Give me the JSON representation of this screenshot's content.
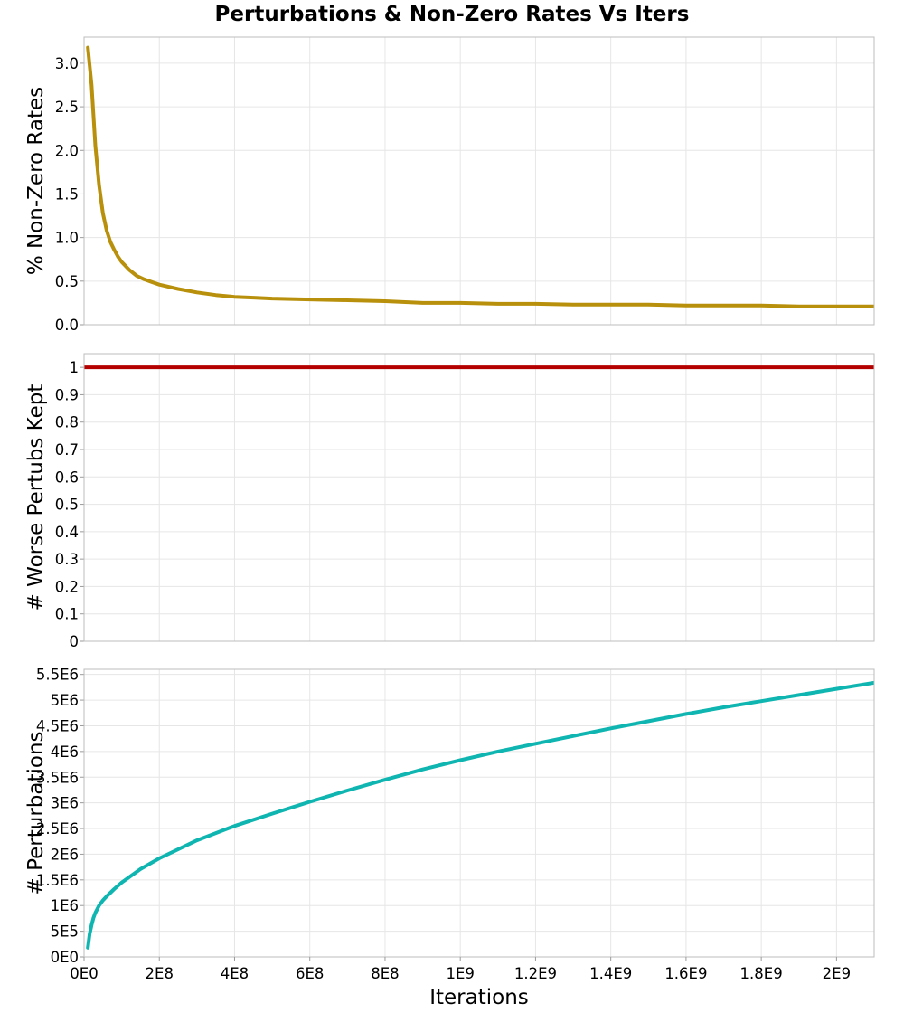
{
  "title": "Perturbations & Non-Zero Rates Vs Iters",
  "x_axis": {
    "label": "Iterations",
    "range": [
      0,
      2100000000
    ],
    "ticks": [
      0,
      200000000,
      400000000,
      600000000,
      800000000,
      1000000000,
      1200000000,
      1400000000,
      1600000000,
      1800000000,
      2000000000
    ],
    "tick_labels": [
      "0E0",
      "2E8",
      "4E8",
      "6E8",
      "8E8",
      "1E9",
      "1.2E9",
      "1.4E9",
      "1.6E9",
      "1.8E9",
      "2E9"
    ]
  },
  "chart_data": [
    {
      "type": "line",
      "ylabel": "% Non-Zero Rates",
      "ylim": [
        0,
        3.3
      ],
      "yticks": [
        0,
        0.5,
        1.0,
        1.5,
        2.0,
        2.5,
        3.0
      ],
      "ytick_labels": [
        "0.0",
        "0.5",
        "1.0",
        "1.5",
        "2.0",
        "2.5",
        "3.0"
      ],
      "grid": true,
      "color": "#b8900b",
      "x": [
        10000000,
        20000000,
        30000000,
        40000000,
        50000000,
        60000000,
        70000000,
        80000000,
        90000000,
        100000000,
        120000000,
        140000000,
        160000000,
        180000000,
        200000000,
        250000000,
        300000000,
        350000000,
        400000000,
        450000000,
        500000000,
        600000000,
        700000000,
        800000000,
        900000000,
        1000000000,
        1100000000,
        1200000000,
        1300000000,
        1400000000,
        1500000000,
        1600000000,
        1700000000,
        1800000000,
        1900000000,
        2000000000,
        2100000000
      ],
      "y": [
        3.18,
        2.75,
        2.05,
        1.6,
        1.28,
        1.08,
        0.95,
        0.86,
        0.78,
        0.72,
        0.63,
        0.56,
        0.52,
        0.49,
        0.46,
        0.41,
        0.37,
        0.34,
        0.32,
        0.31,
        0.3,
        0.29,
        0.28,
        0.27,
        0.25,
        0.25,
        0.24,
        0.24,
        0.23,
        0.23,
        0.23,
        0.22,
        0.22,
        0.22,
        0.21,
        0.21,
        0.21
      ]
    },
    {
      "type": "line",
      "ylabel": "# Worse Pertubs Kept",
      "ylim": [
        0,
        1.05
      ],
      "yticks": [
        0,
        0.1,
        0.2,
        0.3,
        0.4,
        0.5,
        0.6,
        0.7,
        0.8,
        0.9,
        1
      ],
      "ytick_labels": [
        "0",
        "0.1",
        "0.2",
        "0.3",
        "0.4",
        "0.5",
        "0.6",
        "0.7",
        "0.8",
        "0.9",
        "1"
      ],
      "grid": true,
      "color": "#b50000",
      "x": [
        0,
        2100000000
      ],
      "y": [
        1,
        1
      ]
    },
    {
      "type": "line",
      "ylabel": "# Perturbations",
      "ylim": [
        0,
        5600000
      ],
      "yticks": [
        0,
        500000,
        1000000,
        1500000,
        2000000,
        2500000,
        3000000,
        3500000,
        4000000,
        4500000,
        5000000,
        5500000
      ],
      "ytick_labels": [
        "0E0",
        "5E5",
        "1E6",
        "1.5E6",
        "2E6",
        "2.5E6",
        "3E6",
        "3.5E6",
        "4E6",
        "4.5E6",
        "5E6",
        "5.5E6"
      ],
      "grid": true,
      "color": "#0fb5b0",
      "x": [
        10000000,
        15000000,
        20000000,
        25000000,
        30000000,
        40000000,
        50000000,
        60000000,
        80000000,
        100000000,
        150000000,
        200000000,
        300000000,
        400000000,
        500000000,
        600000000,
        700000000,
        800000000,
        900000000,
        1000000000,
        1100000000,
        1200000000,
        1300000000,
        1400000000,
        1500000000,
        1600000000,
        1700000000,
        1800000000,
        1900000000,
        2000000000,
        2100000000
      ],
      "y": [
        180000,
        450000,
        620000,
        760000,
        860000,
        1000000,
        1100000,
        1180000,
        1320000,
        1450000,
        1710000,
        1920000,
        2270000,
        2550000,
        2790000,
        3020000,
        3240000,
        3450000,
        3650000,
        3830000,
        4000000,
        4150000,
        4300000,
        4450000,
        4590000,
        4730000,
        4860000,
        4980000,
        5100000,
        5220000,
        5340000
      ]
    }
  ]
}
